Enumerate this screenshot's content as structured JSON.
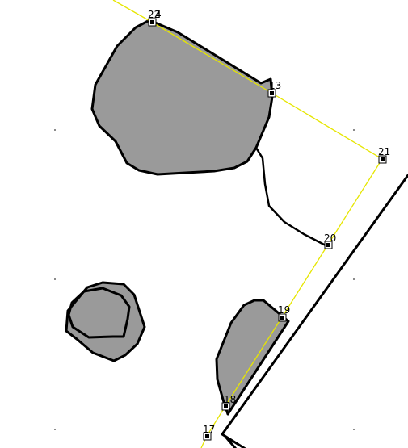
{
  "canvas": {
    "background": "#ffffff",
    "shape_fill": "#9a9a9a",
    "outline_color": "#000000",
    "selection_color": "#e6e600",
    "handle_color": "#000000",
    "grid_dot_color": "#8a8a8a"
  },
  "selection": {
    "vertex_labels": [
      "22",
      "4",
      "13",
      "21",
      "20",
      "19",
      "18",
      "17"
    ]
  }
}
